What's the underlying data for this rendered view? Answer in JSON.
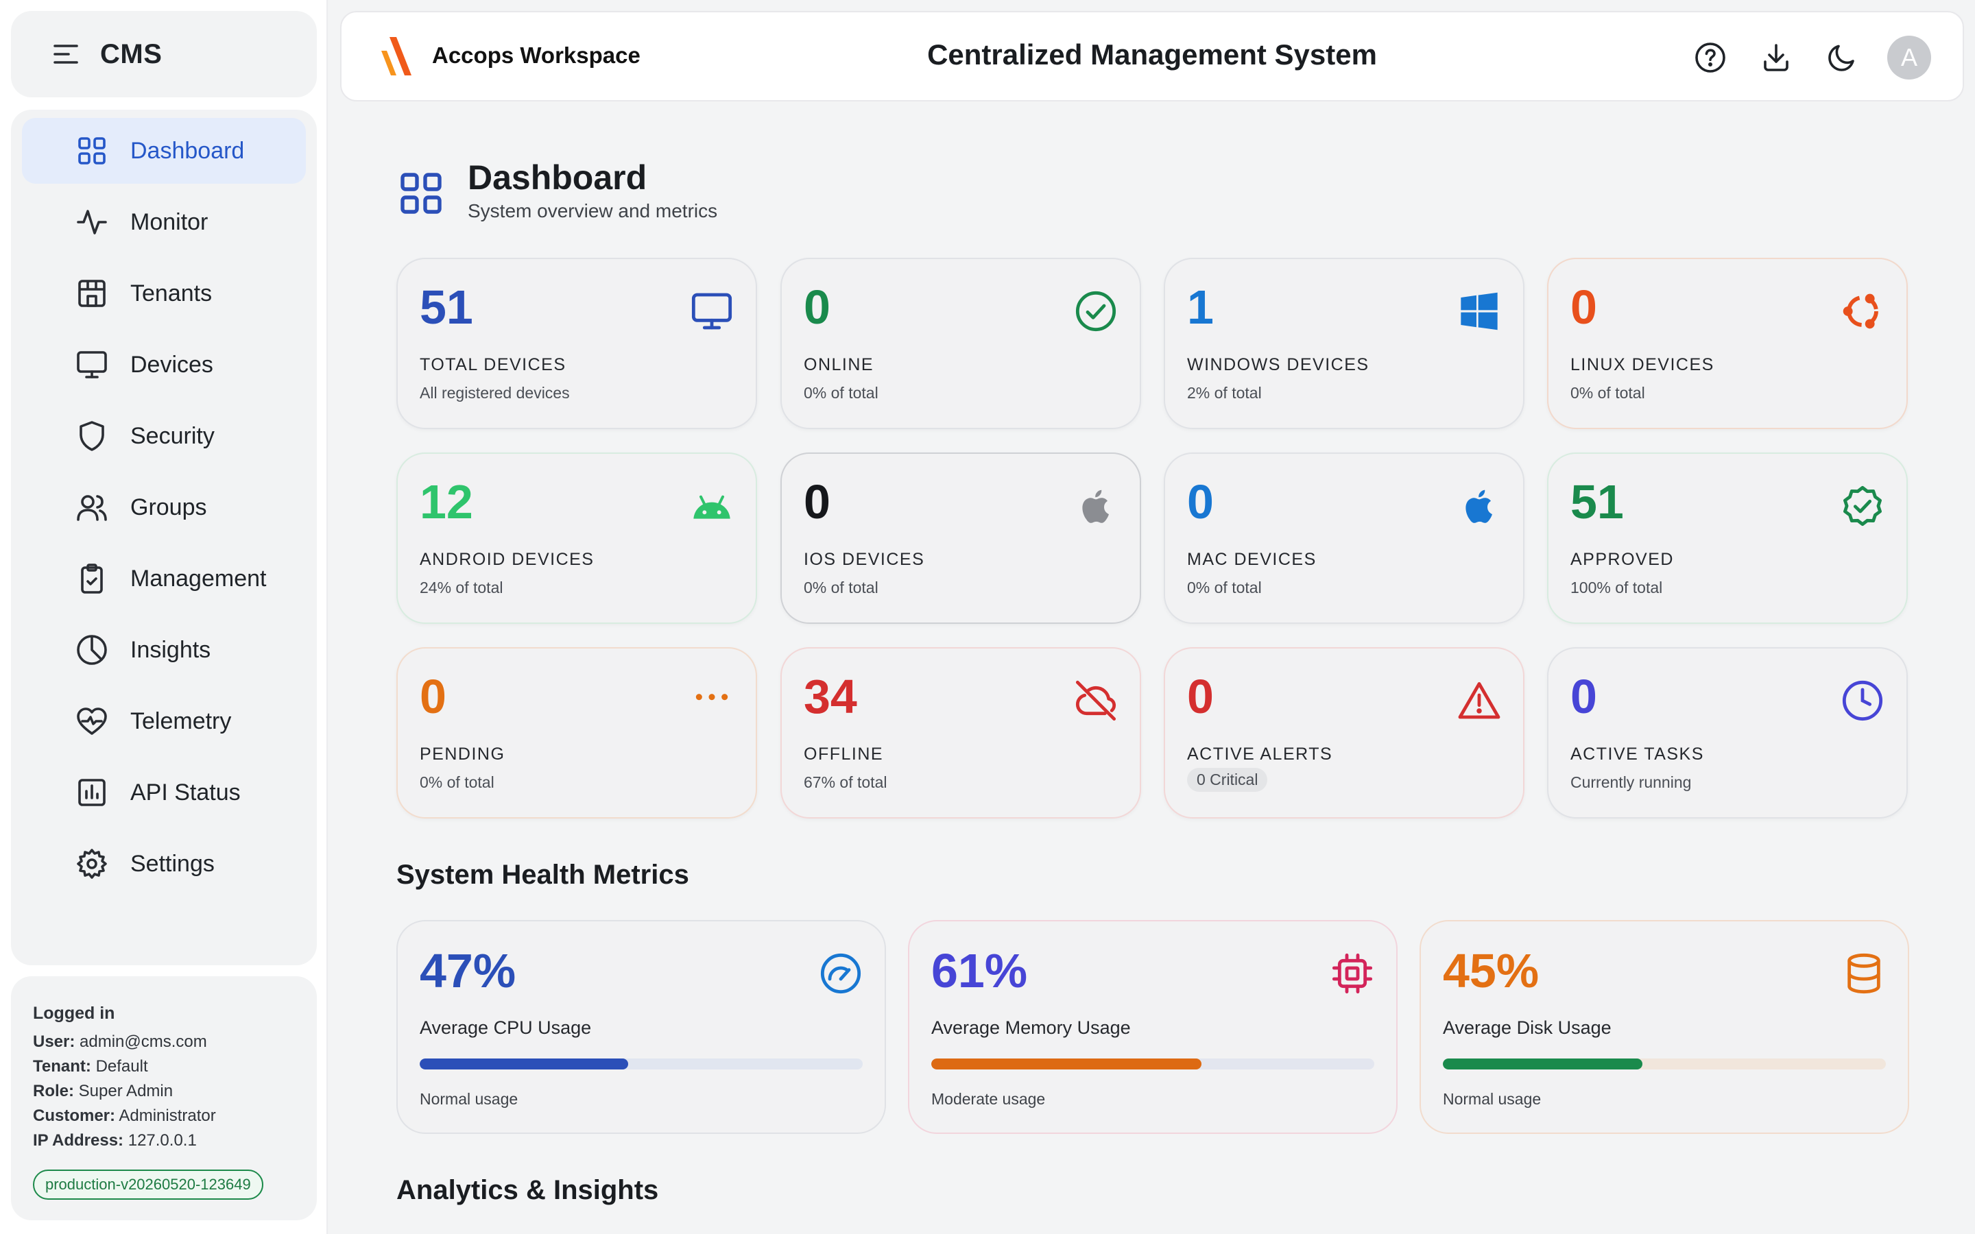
{
  "sidebar": {
    "brand": "CMS",
    "items": [
      {
        "label": "Dashboard",
        "icon": "grid-icon",
        "active": true
      },
      {
        "label": "Monitor",
        "icon": "activity-icon"
      },
      {
        "label": "Tenants",
        "icon": "building-icon"
      },
      {
        "label": "Devices",
        "icon": "monitor-icon"
      },
      {
        "label": "Security",
        "icon": "shield-icon"
      },
      {
        "label": "Groups",
        "icon": "users-icon"
      },
      {
        "label": "Management",
        "icon": "clipboard-check-icon"
      },
      {
        "label": "Insights",
        "icon": "pie-chart-icon"
      },
      {
        "label": "Telemetry",
        "icon": "heart-pulse-icon"
      },
      {
        "label": "API Status",
        "icon": "bar-chart-icon"
      },
      {
        "label": "Settings",
        "icon": "gear-icon"
      }
    ],
    "user": {
      "title": "Logged in",
      "user_label": "User:",
      "user": "admin@cms.com",
      "tenant_label": "Tenant:",
      "tenant": "Default",
      "role_label": "Role:",
      "role": "Super Admin",
      "customer_label": "Customer:",
      "customer": "Administrator",
      "ip_label": "IP Address:",
      "ip": "127.0.0.1",
      "version": "production-v20260520-123649"
    }
  },
  "header": {
    "workspace": "Accops Workspace",
    "title": "Centralized Management System",
    "icons": [
      "help-icon",
      "download-icon",
      "moon-icon"
    ],
    "avatar": "A"
  },
  "page": {
    "title": "Dashboard",
    "subtitle": "System overview and metrics"
  },
  "stats": [
    {
      "value": "51",
      "label": "TOTAL DEVICES",
      "sub": "All registered devices",
      "color": "#2b4fb8",
      "icon": "monitor-icon"
    },
    {
      "value": "0",
      "label": "ONLINE",
      "sub": "0% of total",
      "color": "#1a8a4c",
      "icon": "check-circle-icon"
    },
    {
      "value": "1",
      "label": "WINDOWS DEVICES",
      "sub": "2% of total",
      "color": "#1877d2",
      "icon": "windows-icon"
    },
    {
      "value": "0",
      "label": "LINUX DEVICES",
      "sub": "0% of total",
      "color": "#e8501c",
      "icon": "ubuntu-icon"
    },
    {
      "value": "12",
      "label": "ANDROID DEVICES",
      "sub": "24% of total",
      "color": "#2fc46c",
      "icon": "android-icon"
    },
    {
      "value": "0",
      "label": "IOS DEVICES",
      "sub": "0% of total",
      "color": "#16181b",
      "icon": "apple-icon"
    },
    {
      "value": "0",
      "label": "MAC DEVICES",
      "sub": "0% of total",
      "color": "#1877d2",
      "icon": "apple-icon"
    },
    {
      "value": "51",
      "label": "APPROVED",
      "sub": "100% of total",
      "color": "#1a8a4c",
      "icon": "badge-check-icon"
    },
    {
      "value": "0",
      "label": "PENDING",
      "sub": "0% of total",
      "color": "#e37013",
      "icon": "more-dots-icon"
    },
    {
      "value": "34",
      "label": "OFFLINE",
      "sub": "67% of total",
      "color": "#d42f2f",
      "icon": "cloud-off-icon"
    },
    {
      "value": "0",
      "label": "ACTIVE ALERTS",
      "sub": "0 Critical",
      "color": "#d42f2f",
      "icon": "alert-triangle-icon"
    },
    {
      "value": "0",
      "label": "ACTIVE TASKS",
      "sub": "Currently running",
      "color": "#4745d6",
      "icon": "clock-icon"
    }
  ],
  "health": {
    "title": "System Health Metrics",
    "metrics": [
      {
        "value": "47%",
        "percent": 47,
        "label": "Average CPU Usage",
        "sub": "Normal usage",
        "color": "#2b4fb8",
        "fill": "#2b4fb8",
        "track": "#e1e6f0",
        "icon": "gauge-icon"
      },
      {
        "value": "61%",
        "percent": 61,
        "label": "Average Memory Usage",
        "sub": "Moderate usage",
        "color": "#4745d6",
        "fill": "#dd6a13",
        "track": "#e3e6ef",
        "icon": "cpu-icon"
      },
      {
        "value": "45%",
        "percent": 45,
        "label": "Average Disk Usage",
        "sub": "Normal usage",
        "color": "#e37013",
        "fill": "#1a8a4c",
        "track": "#f1e6dc",
        "icon": "database-icon"
      }
    ]
  },
  "analytics": {
    "title": "Analytics & Insights"
  }
}
